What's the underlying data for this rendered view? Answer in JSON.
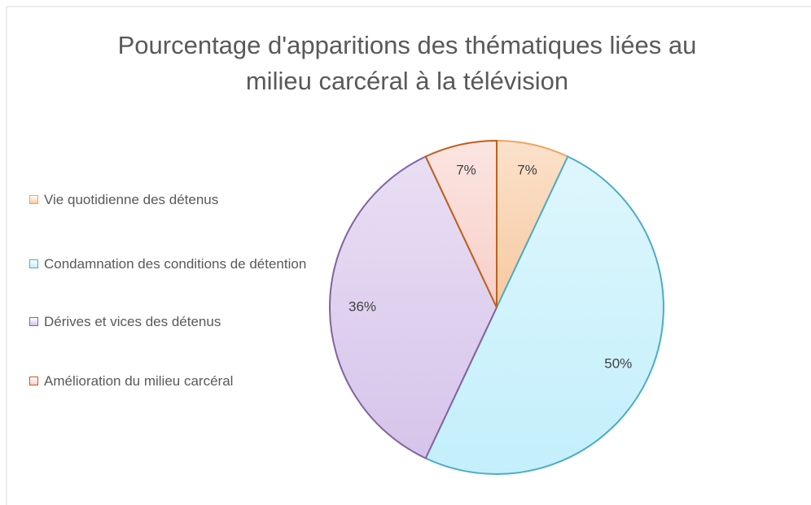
{
  "chart_data": {
    "type": "pie",
    "title": "Pourcentage d'apparitions des thématiques liées au milieu carcéral à la télévision",
    "categories": [
      "Vie quotidienne des détenus",
      "Condamnation des conditions de détention",
      "Dérives et vices des détenus",
      "Amélioration du milieu carcéral"
    ],
    "values": [
      7,
      50,
      36,
      7
    ],
    "value_labels": [
      "7%",
      "50%",
      "36%",
      "7%"
    ],
    "colors": [
      "#f7c9a0",
      "#c3effb",
      "#d6c4ea",
      "#f8cfc8"
    ],
    "edge_colors": [
      "#f0a35e",
      "#4bacc6",
      "#8064a2",
      "#c0601a"
    ],
    "legend": "left"
  }
}
